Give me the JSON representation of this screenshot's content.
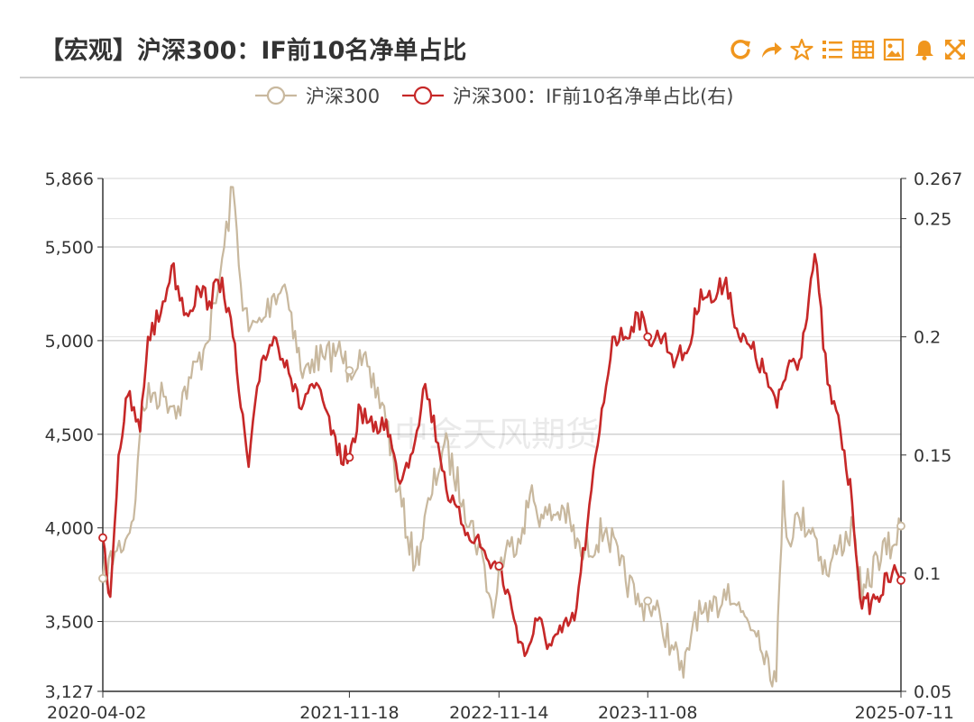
{
  "header": {
    "title": "【宏观】沪深300：IF前10名净单占比",
    "toolbar": [
      {
        "name": "refresh-icon"
      },
      {
        "name": "share-icon"
      },
      {
        "name": "star-icon"
      },
      {
        "name": "list-icon"
      },
      {
        "name": "table-icon"
      },
      {
        "name": "image-icon"
      },
      {
        "name": "bell-icon"
      },
      {
        "name": "fullscreen-icon"
      }
    ],
    "accent_color": "#f0961e"
  },
  "watermark": "中金天风期货",
  "chart_data": {
    "type": "line",
    "legend_position": "top-center",
    "grid": true,
    "x_ticks": [
      "2020-04-02",
      "2021-11-18",
      "2022-11-14",
      "2023-11-08",
      "2025-07-11"
    ],
    "x_range": [
      "2020-04-02",
      "2025-07-11"
    ],
    "y_left": {
      "ticks": [
        "3,127",
        "3,500",
        "4,000",
        "4,500",
        "5,000",
        "5,500",
        "5,866"
      ],
      "range": [
        3127,
        5866
      ]
    },
    "y_right": {
      "ticks": [
        "0.05",
        "0.1",
        "0.15",
        "0.2",
        "0.25",
        "0.267"
      ],
      "range": [
        0.05,
        0.267
      ]
    },
    "series": [
      {
        "name": "沪深300",
        "axis": "left",
        "color": "#c8b89e",
        "points": [
          [
            "2020-04-02",
            3730
          ],
          [
            "2020-05-01",
            3870
          ],
          [
            "2020-06-01",
            3960
          ],
          [
            "2020-06-20",
            4150
          ],
          [
            "2020-07-06",
            4650
          ],
          [
            "2020-08-01",
            4720
          ],
          [
            "2020-09-01",
            4700
          ],
          [
            "2020-10-01",
            4650
          ],
          [
            "2020-11-01",
            4800
          ],
          [
            "2020-12-01",
            4950
          ],
          [
            "2020-12-31",
            5200
          ],
          [
            "2021-01-20",
            5500
          ],
          [
            "2021-02-10",
            5820
          ],
          [
            "2021-03-01",
            5300
          ],
          [
            "2021-03-20",
            5050
          ],
          [
            "2021-04-20",
            5100
          ],
          [
            "2021-05-20",
            5250
          ],
          [
            "2021-06-15",
            5300
          ],
          [
            "2021-07-01",
            5150
          ],
          [
            "2021-07-28",
            4800
          ],
          [
            "2021-08-20",
            4900
          ],
          [
            "2021-09-20",
            4900
          ],
          [
            "2021-10-20",
            4950
          ],
          [
            "2021-11-18",
            4840
          ],
          [
            "2021-12-13",
            4950
          ],
          [
            "2022-01-10",
            4750
          ],
          [
            "2022-02-10",
            4650
          ],
          [
            "2022-03-15",
            4200
          ],
          [
            "2022-04-26",
            3800
          ],
          [
            "2022-06-01",
            4150
          ],
          [
            "2022-07-05",
            4450
          ],
          [
            "2022-08-20",
            4150
          ],
          [
            "2022-10-10",
            3800
          ],
          [
            "2022-10-31",
            3520
          ],
          [
            "2022-11-14",
            3790
          ],
          [
            "2022-12-10",
            3900
          ],
          [
            "2023-01-10",
            4000
          ],
          [
            "2023-01-28",
            4180
          ],
          [
            "2023-03-01",
            4050
          ],
          [
            "2023-04-20",
            4100
          ],
          [
            "2023-05-31",
            3850
          ],
          [
            "2023-07-31",
            4000
          ],
          [
            "2023-09-01",
            3800
          ],
          [
            "2023-10-20",
            3580
          ],
          [
            "2023-11-08",
            3610
          ],
          [
            "2023-12-10",
            3500
          ],
          [
            "2024-01-10",
            3350
          ],
          [
            "2024-02-02",
            3200
          ],
          [
            "2024-03-01",
            3550
          ],
          [
            "2024-04-01",
            3500
          ],
          [
            "2024-05-20",
            3700
          ],
          [
            "2024-06-20",
            3550
          ],
          [
            "2024-08-01",
            3450
          ],
          [
            "2024-09-13",
            3180
          ],
          [
            "2024-09-30",
            4250
          ],
          [
            "2024-10-08",
            3950
          ],
          [
            "2024-11-08",
            4050
          ],
          [
            "2024-12-10",
            4000
          ],
          [
            "2025-01-13",
            3750
          ],
          [
            "2025-02-10",
            3900
          ],
          [
            "2025-03-18",
            4000
          ],
          [
            "2025-04-08",
            3600
          ],
          [
            "2025-05-15",
            3850
          ],
          [
            "2025-06-20",
            3900
          ],
          [
            "2025-07-11",
            4010
          ]
        ]
      },
      {
        "name": "沪深300：IF前10名净单占比(右)",
        "axis": "right",
        "color": "#c62828",
        "points": [
          [
            "2020-04-02",
            0.115
          ],
          [
            "2020-04-20",
            0.09
          ],
          [
            "2020-05-10",
            0.15
          ],
          [
            "2020-06-01",
            0.175
          ],
          [
            "2020-07-01",
            0.16
          ],
          [
            "2020-07-20",
            0.2
          ],
          [
            "2020-08-20",
            0.21
          ],
          [
            "2020-09-15",
            0.23
          ],
          [
            "2020-10-20",
            0.21
          ],
          [
            "2020-11-20",
            0.22
          ],
          [
            "2020-12-15",
            0.215
          ],
          [
            "2021-01-15",
            0.225
          ],
          [
            "2021-02-10",
            0.2
          ],
          [
            "2021-03-01",
            0.17
          ],
          [
            "2021-03-20",
            0.145
          ],
          [
            "2021-04-20",
            0.19
          ],
          [
            "2021-05-20",
            0.2
          ],
          [
            "2021-06-20",
            0.19
          ],
          [
            "2021-07-20",
            0.17
          ],
          [
            "2021-08-20",
            0.18
          ],
          [
            "2021-09-20",
            0.17
          ],
          [
            "2021-10-20",
            0.15
          ],
          [
            "2021-11-18",
            0.149
          ],
          [
            "2021-12-15",
            0.17
          ],
          [
            "2022-01-15",
            0.16
          ],
          [
            "2022-02-15",
            0.165
          ],
          [
            "2022-03-15",
            0.14
          ],
          [
            "2022-04-15",
            0.15
          ],
          [
            "2022-05-20",
            0.18
          ],
          [
            "2022-06-20",
            0.155
          ],
          [
            "2022-07-20",
            0.13
          ],
          [
            "2022-08-20",
            0.12
          ],
          [
            "2022-09-20",
            0.115
          ],
          [
            "2022-10-20",
            0.105
          ],
          [
            "2022-11-14",
            0.103
          ],
          [
            "2022-12-15",
            0.085
          ],
          [
            "2023-01-15",
            0.065
          ],
          [
            "2023-02-15",
            0.08
          ],
          [
            "2023-03-15",
            0.07
          ],
          [
            "2023-04-15",
            0.075
          ],
          [
            "2023-05-15",
            0.08
          ],
          [
            "2023-06-15",
            0.12
          ],
          [
            "2023-07-15",
            0.16
          ],
          [
            "2023-08-15",
            0.2
          ],
          [
            "2023-09-15",
            0.2
          ],
          [
            "2023-10-15",
            0.21
          ],
          [
            "2023-11-08",
            0.2
          ],
          [
            "2023-12-15",
            0.2
          ],
          [
            "2024-01-15",
            0.19
          ],
          [
            "2024-02-15",
            0.195
          ],
          [
            "2024-03-15",
            0.22
          ],
          [
            "2024-04-15",
            0.215
          ],
          [
            "2024-05-15",
            0.225
          ],
          [
            "2024-06-15",
            0.2
          ],
          [
            "2024-07-15",
            0.195
          ],
          [
            "2024-08-15",
            0.185
          ],
          [
            "2024-09-15",
            0.17
          ],
          [
            "2024-10-15",
            0.19
          ],
          [
            "2024-11-08",
            0.19
          ],
          [
            "2024-12-15",
            0.235
          ],
          [
            "2025-01-15",
            0.18
          ],
          [
            "2025-02-15",
            0.16
          ],
          [
            "2025-03-15",
            0.13
          ],
          [
            "2025-04-08",
            0.085
          ],
          [
            "2025-05-15",
            0.09
          ],
          [
            "2025-06-20",
            0.1
          ],
          [
            "2025-07-11",
            0.097
          ]
        ]
      }
    ]
  }
}
